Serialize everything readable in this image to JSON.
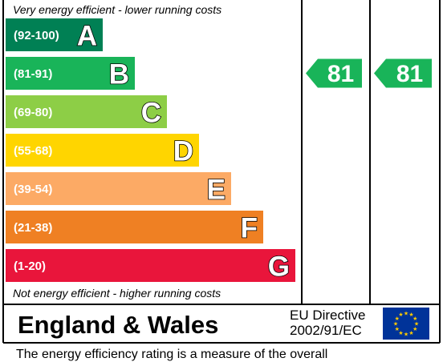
{
  "chart_data": {
    "type": "bar",
    "top_note": "Very energy efficient - lower running costs",
    "bottom_note": "Not energy efficient - higher running costs",
    "bands": [
      {
        "range": "(92-100)",
        "letter": "A",
        "color": "#008054"
      },
      {
        "range": "(81-91)",
        "letter": "B",
        "color": "#19b459"
      },
      {
        "range": "(69-80)",
        "letter": "C",
        "color": "#8dce46"
      },
      {
        "range": "(55-68)",
        "letter": "D",
        "color": "#ffd500"
      },
      {
        "range": "(39-54)",
        "letter": "E",
        "color": "#fcaa65"
      },
      {
        "range": "(21-38)",
        "letter": "F",
        "color": "#ef8023"
      },
      {
        "range": "(1-20)",
        "letter": "G",
        "color": "#e9153b"
      }
    ],
    "ratings": [
      {
        "value": 81,
        "label": "81",
        "band": "B",
        "color": "#19b459"
      },
      {
        "value": 81,
        "label": "81",
        "band": "B",
        "color": "#19b459"
      }
    ]
  },
  "footer": {
    "region": "England & Wales",
    "directive_line1": "EU Directive",
    "directive_line2": "2002/91/EC",
    "continuation_text": "The energy efficiency rating is a measure of the overall"
  }
}
